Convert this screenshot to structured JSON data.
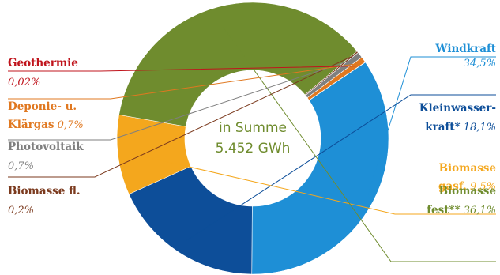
{
  "chart_data": {
    "type": "pie",
    "center_text": [
      "in Summe",
      "5.452 GWh"
    ],
    "series": [
      {
        "name": "Windkraft",
        "label_lines": [
          [
            "Windkraft",
            ""
          ],
          [
            "",
            "34,5%"
          ]
        ],
        "value": 34.5,
        "color": "#1e8fd6"
      },
      {
        "name": "Kleinwasserkraft*",
        "label_lines": [
          [
            "Kleinwasser-",
            ""
          ],
          [
            "kraft*",
            "18,1%"
          ]
        ],
        "value": 18.1,
        "color": "#0d4e99"
      },
      {
        "name": "Biomasse gasf.",
        "label_lines": [
          [
            "Biomasse",
            ""
          ],
          [
            "gasf.",
            "9,5%"
          ]
        ],
        "value": 9.5,
        "color": "#f4a71d"
      },
      {
        "name": "Biomasse fest**",
        "label_lines": [
          [
            "Biomasse",
            ""
          ],
          [
            "fest**",
            "36,1%"
          ]
        ],
        "value": 36.1,
        "color": "#6f8c2e"
      },
      {
        "name": "Biomasse fl.",
        "label_lines": [
          [
            "Biomasse fl.",
            ""
          ],
          [
            "",
            "0,2%"
          ]
        ],
        "value": 0.2,
        "color": "#7b3a1e"
      },
      {
        "name": "Photovoltaik",
        "label_lines": [
          [
            "Photovoltaik",
            ""
          ],
          [
            "",
            "0,7%"
          ]
        ],
        "value": 0.7,
        "color": "#7f7f7f"
      },
      {
        "name": "Deponie- u. Klärgas",
        "label_lines": [
          [
            "Deponie- u.",
            ""
          ],
          [
            "Klärgas",
            "0,7%"
          ]
        ],
        "value": 0.7,
        "color": "#e07820"
      },
      {
        "name": "Geothermie",
        "label_lines": [
          [
            "Geothermie",
            ""
          ],
          [
            "",
            "0,02%"
          ]
        ],
        "value": 0.02,
        "color": "#c0141c"
      }
    ]
  }
}
